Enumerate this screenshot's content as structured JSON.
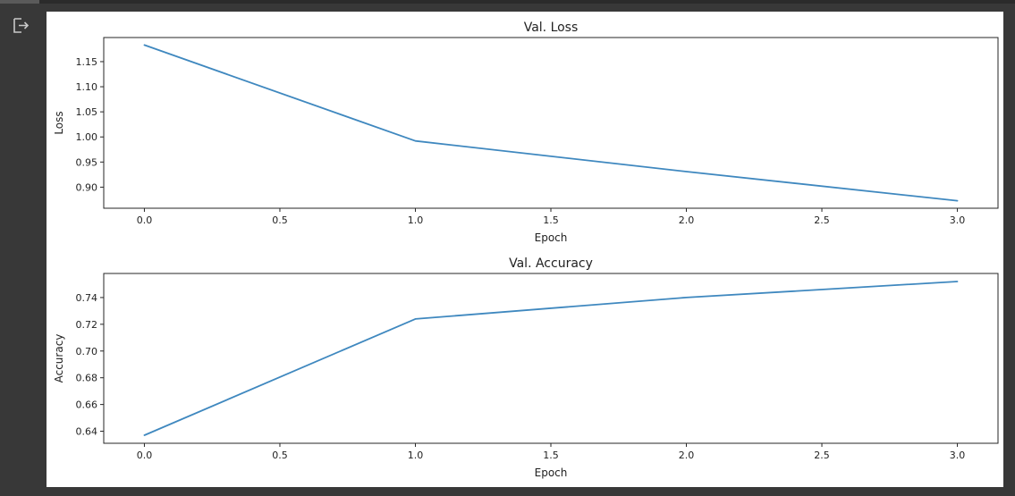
{
  "output_cell": {
    "icon": "output-redirect-icon"
  },
  "colors": {
    "line": "#3f88bf",
    "background": "#383838",
    "plot_bg": "#ffffff"
  },
  "chart_data": [
    {
      "type": "line",
      "title": "Val. Loss",
      "xlabel": "Epoch",
      "ylabel": "Loss",
      "x": [
        0,
        1,
        2,
        3
      ],
      "series": [
        {
          "values": [
            1.183,
            0.992,
            0.931,
            0.873
          ]
        }
      ],
      "xlim": [
        -0.15,
        3.15
      ],
      "ylim": [
        0.858,
        1.198
      ],
      "xticks": [
        "0.0",
        "0.5",
        "1.0",
        "1.5",
        "2.0",
        "2.5",
        "3.0"
      ],
      "yticks": [
        "0.90",
        "0.95",
        "1.00",
        "1.05",
        "1.10",
        "1.15"
      ],
      "grid": false,
      "legend": "none"
    },
    {
      "type": "line",
      "title": "Val. Accuracy",
      "xlabel": "Epoch",
      "ylabel": "Accuracy",
      "x": [
        0,
        1,
        2,
        3
      ],
      "series": [
        {
          "values": [
            0.637,
            0.724,
            0.74,
            0.752
          ]
        }
      ],
      "xlim": [
        -0.15,
        3.15
      ],
      "ylim": [
        0.631,
        0.758
      ],
      "xticks": [
        "0.0",
        "0.5",
        "1.0",
        "1.5",
        "2.0",
        "2.5",
        "3.0"
      ],
      "yticks": [
        "0.64",
        "0.66",
        "0.68",
        "0.70",
        "0.72",
        "0.74"
      ],
      "grid": false,
      "legend": "none"
    }
  ]
}
